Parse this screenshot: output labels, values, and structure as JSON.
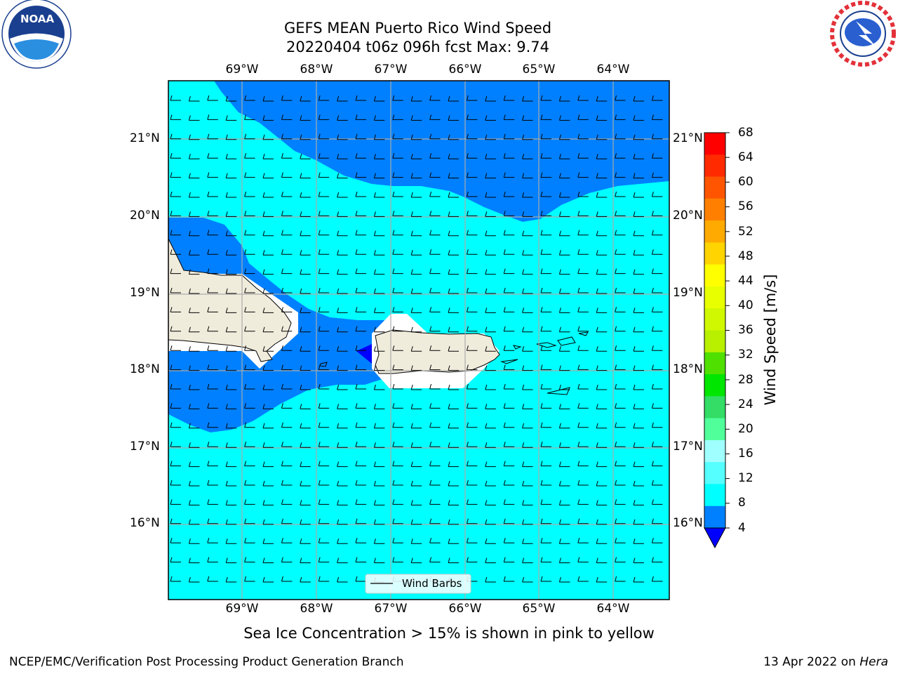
{
  "title": {
    "line1": "GEFS MEAN Puerto Rico Wind Speed",
    "line2": "20220404 t06z 096h fcst   Max: 9.74"
  },
  "longitude_labels": [
    "69°W",
    "68°W",
    "67°W",
    "66°W",
    "65°W",
    "64°W"
  ],
  "latitude_labels": [
    "21°N",
    "20°N",
    "19°N",
    "18°N",
    "17°N",
    "16°N"
  ],
  "colorbar": {
    "label": "Wind Speed [m/s]",
    "ticks": [
      "68",
      "64",
      "60",
      "56",
      "52",
      "48",
      "44",
      "40",
      "36",
      "32",
      "28",
      "24",
      "20",
      "16",
      "12",
      "8",
      "4"
    ],
    "colors_top_to_bottom": [
      "#ff0000",
      "#ff2a00",
      "#ff5500",
      "#ff8000",
      "#ffaa00",
      "#ffd400",
      "#ffff00",
      "#e8ff00",
      "#d0f800",
      "#b8f000",
      "#50e000",
      "#00e600",
      "#33dd66",
      "#50ff9a",
      "#a0ffff",
      "#55ffff",
      "#00ffff",
      "#0080ff"
    ],
    "under_color": "#0000ff"
  },
  "legend": {
    "label": "Wind Barbs"
  },
  "sea_ice_note": "Sea Ice Concentration > 15% is shown in pink to yellow",
  "footer": {
    "left": "NCEP/EMC/Verification Post Processing Product Generation Branch",
    "right_date": "13 Apr 2022 on ",
    "right_machine": "Hera"
  },
  "logos": {
    "noaa": "NOAA",
    "nws": "NATIONAL WEATHER SERVICE",
    "noaa_ring_text": "NATIONAL OCEANIC AND ATMOSPHERIC ADMINISTRATION · U.S. DEPARTMENT OF COMMERCE"
  },
  "map_colors": {
    "cyan": "#00ffff",
    "blue": "#0080ff",
    "deep_blue": "#0000ff",
    "land": "#f0ecdc"
  }
}
